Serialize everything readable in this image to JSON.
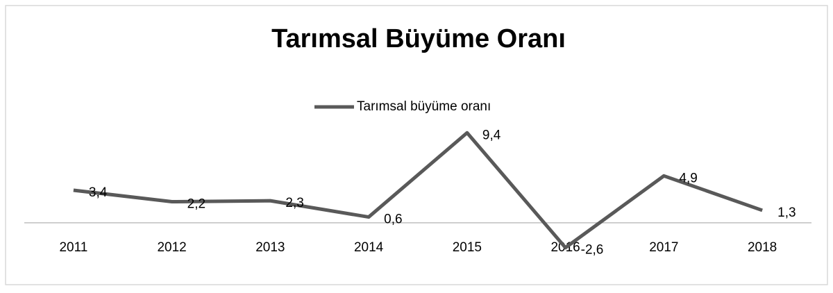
{
  "chart_data": {
    "type": "line",
    "title": "Tarımsal Büyüme Oranı",
    "categories": [
      "2011",
      "2012",
      "2013",
      "2014",
      "2015",
      "2016",
      "2017",
      "2018"
    ],
    "series": [
      {
        "name": "Tarımsal büyüme oranı",
        "color": "#595959",
        "values": [
          3.4,
          2.2,
          2.3,
          0.6,
          9.4,
          -2.6,
          4.9,
          1.3
        ],
        "value_labels": [
          "3,4",
          "2,2",
          "2,3",
          "0,6",
          "9,4",
          "-2,6",
          "4,9",
          "1,3"
        ]
      }
    ],
    "ylim": [
      -4,
      10
    ],
    "legend": "top"
  }
}
